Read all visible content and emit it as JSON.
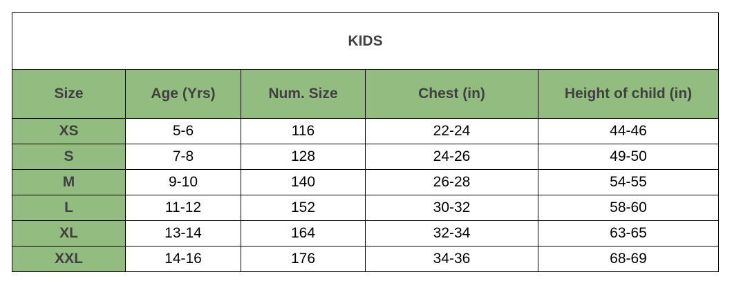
{
  "table": {
    "title": "KIDS",
    "headers": [
      "Size",
      "Age (Yrs)",
      "Num. Size",
      "Chest (in)",
      "Height of child (in)"
    ],
    "rows": [
      [
        "XS",
        "5-6",
        "116",
        "22-24",
        "44-46"
      ],
      [
        "S",
        "7-8",
        "128",
        "24-26",
        "49-50"
      ],
      [
        "M",
        "9-10",
        "140",
        "26-28",
        "54-55"
      ],
      [
        "L",
        "11-12",
        "152",
        "30-32",
        "58-60"
      ],
      [
        "XL",
        "13-14",
        "164",
        "32-34",
        "63-65"
      ],
      [
        "XXL",
        "14-16",
        "176",
        "34-36",
        "68-69"
      ]
    ]
  },
  "colors": {
    "header_fill": "#93bd80",
    "header_text": "#404040",
    "border": "#000000"
  }
}
